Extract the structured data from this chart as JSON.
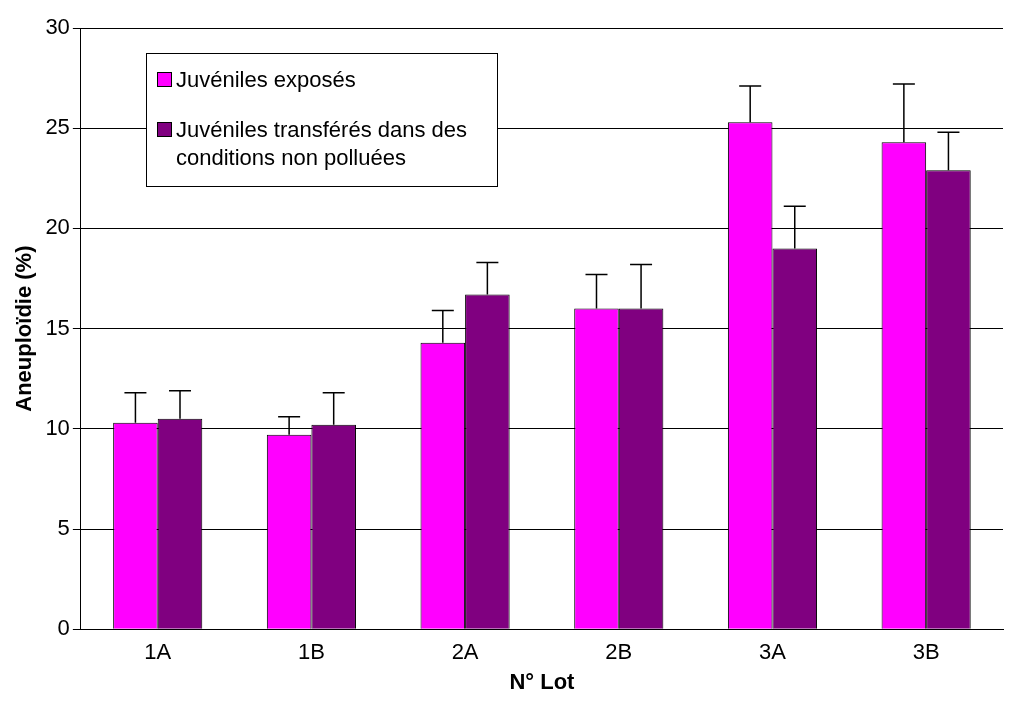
{
  "chart_data": {
    "type": "bar",
    "xlabel": "N° Lot",
    "ylabel": "Aneuploïdie (%)",
    "categories": [
      "1A",
      "1B",
      "2A",
      "2B",
      "3A",
      "3B"
    ],
    "series": [
      {
        "name": "Juvéniles exposés",
        "color": "#ff00ff",
        "values": [
          10.3,
          9.7,
          14.3,
          16.0,
          25.3,
          24.3
        ],
        "errors": [
          [
            10.3,
            11.8
          ],
          [
            9.7,
            10.6
          ],
          [
            14.3,
            15.9
          ],
          [
            16.0,
            17.7
          ],
          [
            25.3,
            27.1
          ],
          [
            24.3,
            27.2
          ]
        ]
      },
      {
        "name": "Juvéniles transférés dans des conditions non polluées",
        "color": "#800080",
        "values": [
          10.5,
          10.2,
          16.7,
          16.0,
          19.0,
          22.9
        ],
        "errors": [
          [
            10.5,
            11.9
          ],
          [
            10.2,
            11.8
          ],
          [
            16.7,
            18.3
          ],
          [
            16.0,
            18.2
          ],
          [
            19.0,
            21.1
          ],
          [
            22.9,
            24.8
          ]
        ]
      }
    ],
    "ylim": [
      0,
      30
    ],
    "yticks": [
      0,
      5,
      10,
      15,
      20,
      25,
      30
    ],
    "grid": "y",
    "legend": "top left"
  }
}
